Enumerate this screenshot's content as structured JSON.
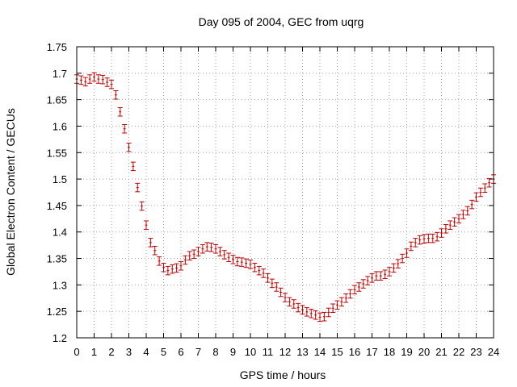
{
  "chart_data": {
    "type": "scatter",
    "title": "Day 095 of 2004, GEC from uqrg",
    "xlabel": "GPS time / hours",
    "ylabel": "Global Electron Content / GECUs",
    "xlim": [
      0,
      24
    ],
    "ylim": [
      1.2,
      1.75
    ],
    "xticks": [
      "0",
      "1",
      "2",
      "3",
      "4",
      "5",
      "6",
      "7",
      "8",
      "9",
      "10",
      "11",
      "12",
      "13",
      "14",
      "15",
      "16",
      "17",
      "18",
      "19",
      "20",
      "21",
      "22",
      "23",
      "24"
    ],
    "yticks": [
      "1.2",
      "1.25",
      "1.3",
      "1.35",
      "1.4",
      "1.45",
      "1.5",
      "1.55",
      "1.6",
      "1.65",
      "1.7",
      "1.75"
    ],
    "grid": true,
    "legend": "none",
    "error_bar_halfwidth": 0.008,
    "series": [
      {
        "color": "#c00000",
        "points": [
          [
            0.0,
            1.689
          ],
          [
            0.25,
            1.687
          ],
          [
            0.5,
            1.684
          ],
          [
            0.75,
            1.689
          ],
          [
            1.0,
            1.693
          ],
          [
            1.25,
            1.689
          ],
          [
            1.5,
            1.688
          ],
          [
            1.75,
            1.683
          ],
          [
            2.0,
            1.679
          ],
          [
            2.25,
            1.659
          ],
          [
            2.5,
            1.627
          ],
          [
            2.75,
            1.595
          ],
          [
            3.0,
            1.56
          ],
          [
            3.25,
            1.524
          ],
          [
            3.5,
            1.484
          ],
          [
            3.75,
            1.449
          ],
          [
            4.0,
            1.413
          ],
          [
            4.25,
            1.38
          ],
          [
            4.5,
            1.365
          ],
          [
            4.75,
            1.345
          ],
          [
            5.0,
            1.333
          ],
          [
            5.25,
            1.327
          ],
          [
            5.5,
            1.33
          ],
          [
            5.75,
            1.332
          ],
          [
            6.0,
            1.336
          ],
          [
            6.25,
            1.347
          ],
          [
            6.5,
            1.355
          ],
          [
            6.75,
            1.358
          ],
          [
            7.0,
            1.363
          ],
          [
            7.25,
            1.368
          ],
          [
            7.5,
            1.372
          ],
          [
            7.75,
            1.371
          ],
          [
            8.0,
            1.368
          ],
          [
            8.25,
            1.363
          ],
          [
            8.5,
            1.357
          ],
          [
            8.75,
            1.352
          ],
          [
            9.0,
            1.348
          ],
          [
            9.25,
            1.344
          ],
          [
            9.5,
            1.343
          ],
          [
            9.75,
            1.341
          ],
          [
            10.0,
            1.339
          ],
          [
            10.25,
            1.333
          ],
          [
            10.5,
            1.327
          ],
          [
            10.75,
            1.322
          ],
          [
            11.0,
            1.313
          ],
          [
            11.25,
            1.303
          ],
          [
            11.5,
            1.296
          ],
          [
            11.75,
            1.286
          ],
          [
            12.0,
            1.276
          ],
          [
            12.25,
            1.268
          ],
          [
            12.5,
            1.264
          ],
          [
            12.75,
            1.257
          ],
          [
            13.0,
            1.253
          ],
          [
            13.25,
            1.249
          ],
          [
            13.5,
            1.246
          ],
          [
            13.75,
            1.243
          ],
          [
            14.0,
            1.239
          ],
          [
            14.25,
            1.24
          ],
          [
            14.5,
            1.248
          ],
          [
            14.75,
            1.256
          ],
          [
            15.0,
            1.262
          ],
          [
            15.25,
            1.268
          ],
          [
            15.5,
            1.275
          ],
          [
            15.75,
            1.283
          ],
          [
            16.0,
            1.291
          ],
          [
            16.25,
            1.296
          ],
          [
            16.5,
            1.302
          ],
          [
            16.75,
            1.308
          ],
          [
            17.0,
            1.313
          ],
          [
            17.25,
            1.317
          ],
          [
            17.5,
            1.317
          ],
          [
            17.75,
            1.32
          ],
          [
            18.0,
            1.325
          ],
          [
            18.25,
            1.332
          ],
          [
            18.5,
            1.34
          ],
          [
            18.75,
            1.35
          ],
          [
            19.0,
            1.36
          ],
          [
            19.25,
            1.373
          ],
          [
            19.5,
            1.38
          ],
          [
            19.75,
            1.385
          ],
          [
            20.0,
            1.387
          ],
          [
            20.25,
            1.388
          ],
          [
            20.5,
            1.388
          ],
          [
            20.75,
            1.391
          ],
          [
            21.0,
            1.398
          ],
          [
            21.25,
            1.406
          ],
          [
            21.5,
            1.413
          ],
          [
            21.75,
            1.419
          ],
          [
            22.0,
            1.425
          ],
          [
            22.25,
            1.433
          ],
          [
            22.5,
            1.44
          ],
          [
            22.75,
            1.452
          ],
          [
            23.0,
            1.466
          ],
          [
            23.25,
            1.475
          ],
          [
            23.5,
            1.483
          ],
          [
            23.75,
            1.493
          ],
          [
            24.0,
            1.5
          ]
        ]
      }
    ]
  }
}
